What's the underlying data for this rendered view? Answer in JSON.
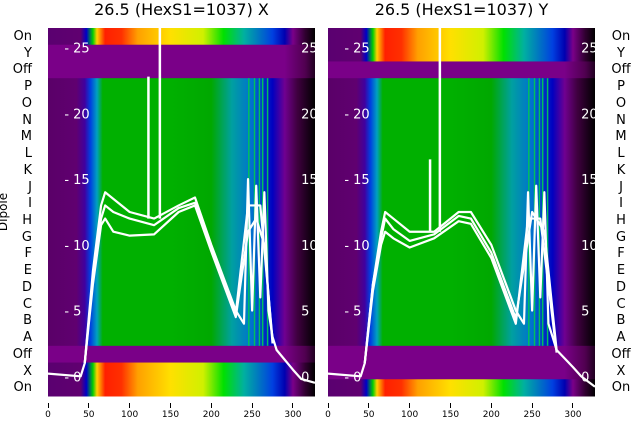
{
  "colors": {
    "off": "#7a0088",
    "black": "#000000",
    "white": "#ffffff"
  },
  "chart_data": [
    {
      "type": "heatmap",
      "title": "26.5 (HexS1=1037) X",
      "ylabel": "Dipole",
      "row_labels": [
        "On",
        "Y",
        "Off",
        "P",
        "O",
        "N",
        "M",
        "L",
        "K",
        "J",
        "I",
        "H",
        "G",
        "F",
        "E",
        "D",
        "C",
        "B",
        "A",
        "Off",
        "X",
        "On"
      ],
      "row_types": [
        "hot",
        "off",
        "off",
        "dipole",
        "dipole",
        "dipole",
        "dipole",
        "dipole",
        "dipole",
        "dipole",
        "dipole",
        "dipole",
        "dipole",
        "dipole",
        "dipole",
        "dipole",
        "dipole",
        "dipole",
        "dipole",
        "off",
        "hot",
        "hot"
      ],
      "xlim": [
        0,
        327
      ],
      "xticks": [
        0,
        50,
        100,
        150,
        200,
        250,
        300
      ],
      "overlay_ylim": [
        -1.5,
        26.5
      ],
      "overlay_yticks": [
        0,
        5,
        10,
        15,
        20,
        25
      ],
      "lines": [
        {
          "x": [
            0,
            40,
            45,
            55,
            65,
            70,
            80,
            100,
            130,
            160,
            180,
            200,
            230,
            240,
            245,
            250,
            255,
            260,
            265,
            270,
            275,
            280,
            300,
            310,
            327
          ],
          "y": [
            0.2,
            0,
            1,
            8,
            13,
            14,
            13.5,
            12.5,
            12,
            13,
            13.6,
            10,
            5,
            4,
            15,
            5,
            14.5,
            6,
            14,
            5,
            3,
            2,
            0.5,
            -0.2,
            -0.5
          ]
        },
        {
          "x": [
            45,
            55,
            65,
            70,
            80,
            100,
            130,
            160,
            180,
            200,
            230,
            245,
            255,
            265,
            275
          ],
          "y": [
            1,
            7,
            11.5,
            12,
            11,
            10.7,
            10.8,
            12.5,
            13,
            9.5,
            4.5,
            11,
            12,
            10,
            2.5
          ]
        },
        {
          "x": [
            45,
            55,
            65,
            70,
            80,
            100,
            130,
            160,
            180,
            200,
            230,
            245,
            260,
            275
          ],
          "y": [
            1,
            7.5,
            12,
            13,
            12.5,
            12,
            11.5,
            12.8,
            13.2,
            9.8,
            4.8,
            13,
            13,
            2.8
          ]
        }
      ],
      "spikes": [
        {
          "x": 123,
          "from": 12,
          "to": 22.8
        },
        {
          "x": 137,
          "from": 12,
          "to": 26.5
        }
      ]
    },
    {
      "type": "heatmap",
      "title": "26.5 (HexS1=1037) Y",
      "row_labels": [
        "On",
        "Y",
        "Off",
        "P",
        "O",
        "N",
        "M",
        "L",
        "K",
        "J",
        "I",
        "H",
        "G",
        "F",
        "E",
        "D",
        "C",
        "B",
        "A",
        "Off",
        "X",
        "On"
      ],
      "row_types": [
        "hot",
        "hot",
        "off",
        "dipole",
        "dipole",
        "dipole",
        "dipole",
        "dipole",
        "dipole",
        "dipole",
        "dipole",
        "dipole",
        "dipole",
        "dipole",
        "dipole",
        "dipole",
        "dipole",
        "dipole",
        "dipole",
        "off",
        "off",
        "hot"
      ],
      "xlim": [
        0,
        327
      ],
      "xticks": [
        0,
        50,
        100,
        150,
        200,
        250,
        300
      ],
      "overlay_ylim": [
        -1.5,
        26.5
      ],
      "overlay_yticks": [
        0,
        5,
        10,
        15,
        20,
        25
      ],
      "lines": [
        {
          "x": [
            0,
            40,
            45,
            55,
            65,
            70,
            80,
            100,
            130,
            160,
            175,
            200,
            230,
            240,
            245,
            250,
            255,
            260,
            265,
            270,
            280,
            300,
            310,
            327
          ],
          "y": [
            0.2,
            0,
            1,
            7,
            11,
            12.5,
            12,
            11,
            11,
            12.5,
            12.5,
            10,
            5,
            4,
            14,
            5,
            14.5,
            6,
            14,
            4,
            2,
            0.7,
            0,
            -0.8
          ]
        },
        {
          "x": [
            45,
            55,
            65,
            70,
            80,
            100,
            130,
            160,
            175,
            200,
            230,
            245,
            260,
            280
          ],
          "y": [
            1,
            6.5,
            10,
            11,
            10.5,
            9.8,
            10.5,
            11.8,
            11.6,
            9,
            4,
            12,
            12,
            1.8
          ]
        },
        {
          "x": [
            45,
            55,
            65,
            70,
            80,
            100,
            130,
            160,
            175,
            200,
            230,
            250,
            265,
            280
          ],
          "y": [
            1,
            7,
            10.5,
            12,
            11.2,
            10.3,
            10.8,
            12.2,
            12,
            9.4,
            4.4,
            12.5,
            11,
            2
          ]
        }
      ],
      "spikes": [
        {
          "x": 125,
          "from": 11,
          "to": 16.5
        },
        {
          "x": 137,
          "from": 11,
          "to": 26.5
        }
      ]
    }
  ]
}
